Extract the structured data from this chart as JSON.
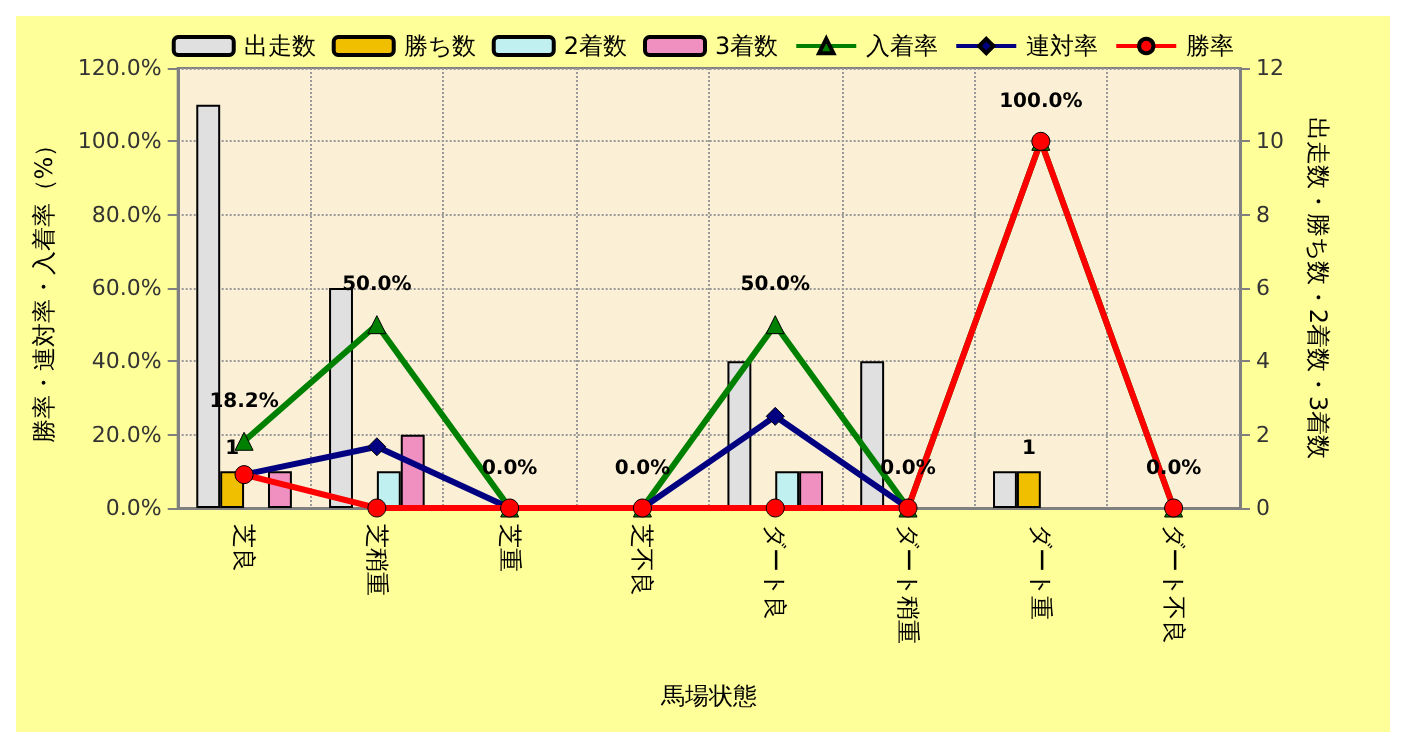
{
  "chart_data": {
    "type": "bar",
    "xlabel": "馬場状態",
    "ylabel": "勝率・連対率・入着率（%）",
    "y2label": "出走数・勝ち数・2着数・3着数",
    "categories": [
      "芝良",
      "芝稍重",
      "芝重",
      "芝不良",
      "ダート良",
      "ダート稍重",
      "ダート重",
      "ダート不良"
    ],
    "series": [
      {
        "name": "出走数",
        "axis": "y2",
        "color": "#e0e0e0",
        "values": [
          11,
          6,
          0,
          0,
          4,
          4,
          1,
          0
        ]
      },
      {
        "name": "勝ち数",
        "axis": "y2",
        "color": "#f0c000",
        "values": [
          1,
          0,
          0,
          0,
          0,
          0,
          1,
          0
        ],
        "value_labels": [
          "1",
          null,
          null,
          null,
          null,
          null,
          "1",
          null
        ]
      },
      {
        "name": "2着数",
        "axis": "y2",
        "color": "#c0f0f0",
        "values": [
          0,
          1,
          0,
          0,
          1,
          0,
          0,
          0
        ]
      },
      {
        "name": "3着数",
        "axis": "y2",
        "color": "#f090c0",
        "values": [
          1,
          2,
          0,
          0,
          1,
          0,
          0,
          0
        ]
      },
      {
        "name": "入着率",
        "type": "line",
        "axis": "y",
        "color": "#008000",
        "marker": "triangle",
        "values": [
          18.2,
          50,
          0,
          0,
          50,
          0,
          100,
          0
        ],
        "value_labels": [
          "18.2%",
          "50.0%",
          "0.0%",
          "0.0%",
          "50.0%",
          "0.0%",
          "100.0%",
          "0.0%"
        ]
      },
      {
        "name": "連対率",
        "type": "line",
        "axis": "y",
        "color": "#000080",
        "marker": "diamond",
        "values": [
          9.1,
          16.7,
          0,
          0,
          25,
          0,
          null,
          null
        ]
      },
      {
        "name": "勝率",
        "type": "line",
        "axis": "y",
        "color": "#ff0000",
        "marker": "circle",
        "values": [
          9.1,
          0,
          0,
          0,
          0,
          0,
          100,
          0
        ]
      }
    ],
    "ylim": [
      0,
      120
    ],
    "yticks": [
      {
        "value": 0,
        "label": "0.0%"
      },
      {
        "value": 20,
        "label": "20.0%"
      },
      {
        "value": 40,
        "label": "40.0%"
      },
      {
        "value": 60,
        "label": "60.0%"
      },
      {
        "value": 80,
        "label": "80.0%"
      },
      {
        "value": 100,
        "label": "100.0%"
      },
      {
        "value": 120,
        "label": "120.0%"
      }
    ],
    "y2lim": [
      0,
      12
    ],
    "y2ticks": [
      0,
      2,
      4,
      6,
      8,
      10,
      12
    ],
    "grid": true,
    "legend": "top"
  }
}
